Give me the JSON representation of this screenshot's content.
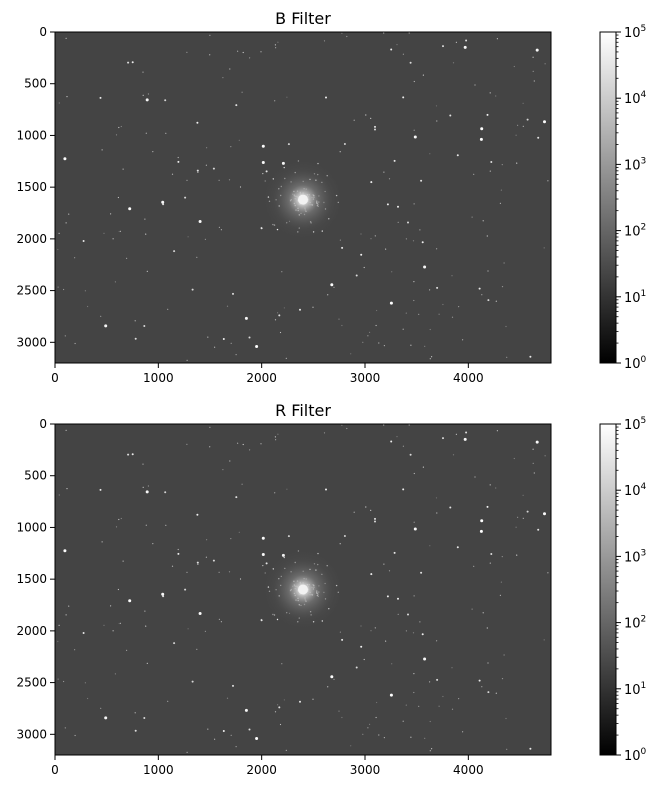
{
  "chart_data": [
    {
      "type": "heatmap",
      "title": "B Filter",
      "xlabel": "",
      "ylabel": "",
      "xlim": [
        0,
        4800
      ],
      "ylim": [
        3200,
        0
      ],
      "xticks": [
        0,
        1000,
        2000,
        3000,
        4000
      ],
      "yticks": [
        0,
        500,
        1000,
        1500,
        2000,
        2500,
        3000
      ],
      "colormap": "gray",
      "colorbar": {
        "scale": "log",
        "range": [
          1,
          100000
        ],
        "ticks": [
          {
            "base": "10",
            "exp": "0"
          },
          {
            "base": "10",
            "exp": "1"
          },
          {
            "base": "10",
            "exp": "2"
          },
          {
            "base": "10",
            "exp": "3"
          },
          {
            "base": "10",
            "exp": "4"
          },
          {
            "base": "10",
            "exp": "5"
          }
        ]
      },
      "features": {
        "background_level": 60,
        "cluster_center": [
          2400,
          1620
        ]
      }
    },
    {
      "type": "heatmap",
      "title": "R Filter",
      "xlabel": "",
      "ylabel": "",
      "xlim": [
        0,
        4800
      ],
      "ylim": [
        3200,
        0
      ],
      "xticks": [
        0,
        1000,
        2000,
        3000,
        4000
      ],
      "yticks": [
        0,
        500,
        1000,
        1500,
        2000,
        2500,
        3000
      ],
      "colormap": "gray",
      "colorbar": {
        "scale": "log",
        "range": [
          1,
          100000
        ],
        "ticks": [
          {
            "base": "10",
            "exp": "0"
          },
          {
            "base": "10",
            "exp": "1"
          },
          {
            "base": "10",
            "exp": "2"
          },
          {
            "base": "10",
            "exp": "3"
          },
          {
            "base": "10",
            "exp": "4"
          },
          {
            "base": "10",
            "exp": "5"
          }
        ]
      },
      "features": {
        "background_level": 60,
        "cluster_center": [
          2400,
          1600
        ]
      }
    }
  ]
}
